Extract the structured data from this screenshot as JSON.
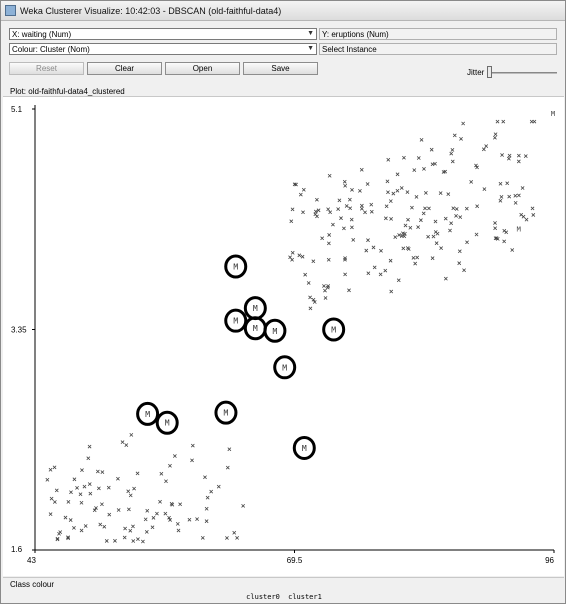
{
  "window": {
    "title": "Weka Clusterer Visualize: 10:42:03 - DBSCAN (old-faithful-data4)"
  },
  "controls": {
    "x_axis": "X: waiting (Num)",
    "y_axis": "Y: eruptions (Num)",
    "colour": "Colour: Cluster (Nom)",
    "select_instance": "Select Instance",
    "reset_label": "Reset",
    "clear_label": "Clear",
    "open_label": "Open",
    "save_label": "Save",
    "jitter_label": "Jitter",
    "jitter_value": 0
  },
  "plot": {
    "title": "Plot: old-faithful-data4_clustered",
    "class_colour_label": "Class colour",
    "legend": [
      "cluster0",
      "cluster1"
    ]
  },
  "chart_data": {
    "type": "scatter",
    "xlabel": "waiting (Num)",
    "ylabel": "eruptions (Num)",
    "xlim": [
      43,
      96
    ],
    "ylim": [
      1.6,
      5.1
    ],
    "x_ticks": [
      "43",
      "69.5",
      "96"
    ],
    "y_ticks": [
      "1.6",
      "3.35",
      "5.1"
    ],
    "cluster1_circled": [
      {
        "x": 63.5,
        "y": 3.85
      },
      {
        "x": 63.5,
        "y": 3.42
      },
      {
        "x": 65.5,
        "y": 3.52
      },
      {
        "x": 65.5,
        "y": 3.36
      },
      {
        "x": 67.5,
        "y": 3.34
      },
      {
        "x": 68.5,
        "y": 3.05
      },
      {
        "x": 73.5,
        "y": 3.35
      },
      {
        "x": 54.5,
        "y": 2.68
      },
      {
        "x": 56.5,
        "y": 2.61
      },
      {
        "x": 62.5,
        "y": 2.69
      },
      {
        "x": 70.5,
        "y": 2.41
      }
    ],
    "cluster1_edge": [
      {
        "x": 96,
        "y": 5.07
      },
      {
        "x": 92.5,
        "y": 4.15
      }
    ]
  }
}
